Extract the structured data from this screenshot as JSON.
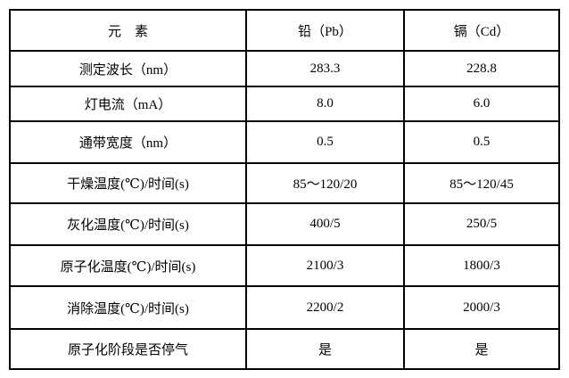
{
  "table": {
    "header": [
      "元　素",
      "铅（Pb）",
      "镉（Cd）"
    ],
    "rows": [
      [
        "测定波长（nm）",
        "283.3",
        "228.8"
      ],
      [
        "灯电流（mA）",
        "8.0",
        "6.0"
      ],
      [
        "通带宽度（nm）",
        "0.5",
        "0.5"
      ],
      [
        "干燥温度(℃)/时间(s)",
        "85～120/20",
        "85～120/45"
      ],
      [
        "灰化温度(℃)/时间(s)",
        "400/5",
        "250/5"
      ],
      [
        "原子化温度(℃)/时间(s)",
        "2100/3",
        "1800/3"
      ],
      [
        "消除温度(℃)/时间(s)",
        "2200/2",
        "2000/3"
      ],
      [
        "原子化阶段是否停气",
        "是",
        "是"
      ]
    ]
  }
}
